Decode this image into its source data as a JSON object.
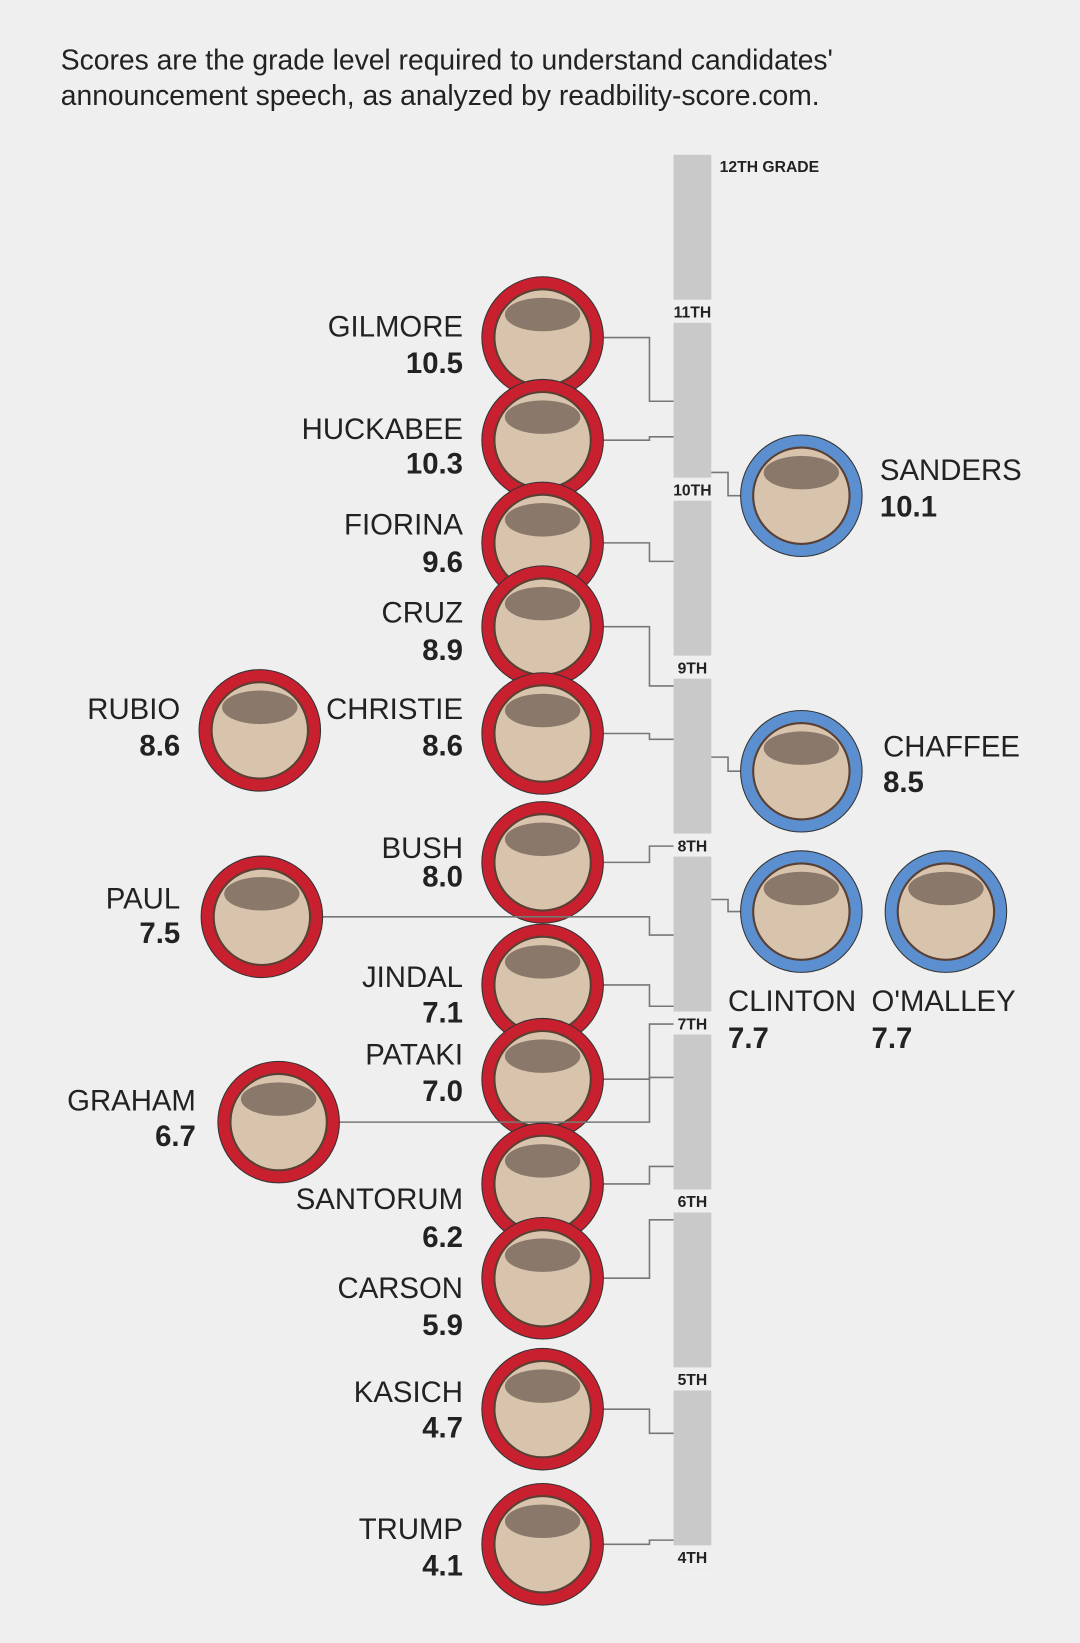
{
  "chart_data": {
    "type": "grade-scale",
    "title": "Scores are the grade level required to understand candidates' announcement speech, as analyzed by readbility-score.com.",
    "categories": [
      "GILMORE",
      "HUCKABEE",
      "FIORINA",
      "CRUZ",
      "CHRISTIE",
      "RUBIO",
      "BUSH",
      "PAUL",
      "JINDAL",
      "PATAKI",
      "GRAHAM",
      "SANTORUM",
      "CARSON",
      "KASICH",
      "TRUMP",
      "SANDERS",
      "CHAFFEE",
      "CLINTON",
      "O'MALLEY"
    ],
    "values": [
      10.5,
      10.3,
      9.6,
      8.9,
      8.6,
      8.6,
      8.0,
      7.5,
      7.1,
      7.0,
      6.7,
      6.2,
      5.9,
      4.7,
      4.1,
      10.1,
      8.5,
      7.7,
      7.7
    ],
    "value_labels": [
      "10.5",
      "10.3",
      "9.6",
      "8.9",
      "8.6",
      "8.6",
      "8.0",
      "7.5",
      "7.1",
      "7.0",
      "6.7",
      "6.2",
      "5.9",
      "4.7",
      "4.1",
      "10.1",
      "8.5",
      "7.7",
      "7.7"
    ],
    "colors": [
      "#c8202f",
      "#c8202f",
      "#c8202f",
      "#c8202f",
      "#c8202f",
      "#c8202f",
      "#c8202f",
      "#c8202f",
      "#c8202f",
      "#c8202f",
      "#c8202f",
      "#c8202f",
      "#c8202f",
      "#c8202f",
      "#c8202f",
      "#5b8fcf",
      "#5b8fcf",
      "#5b8fcf",
      "#5b8fcf"
    ],
    "ylim": [
      4,
      12
    ],
    "yticks": [
      {
        "value": 4,
        "label": "4TH"
      },
      {
        "value": 5,
        "label": "5TH"
      },
      {
        "value": 6,
        "label": "6TH"
      },
      {
        "value": 7,
        "label": "7TH"
      },
      {
        "value": 8,
        "label": "8TH"
      },
      {
        "value": 9,
        "label": "9TH"
      },
      {
        "value": 10,
        "label": "10TH"
      },
      {
        "value": 11,
        "label": "11TH"
      },
      {
        "value": 12,
        "label": "12TH GRADE"
      }
    ]
  }
}
